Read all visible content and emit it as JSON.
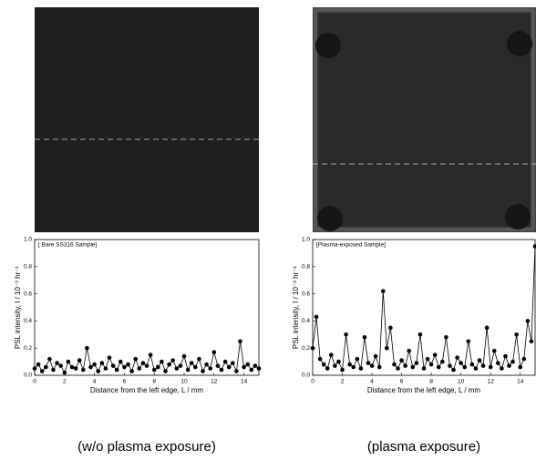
{
  "chart_data": [
    {
      "type": "line",
      "annotation": "[ Bare SS316 Sample]",
      "xlabel": "Distance from the left edge, L / mm",
      "ylabel": "PSL intensity, I / 10⁻³ hr⁻¹",
      "caption": "(w/o plasma exposure)",
      "color": "#000000",
      "xlim": [
        0,
        15
      ],
      "xticks": [
        0,
        2,
        4,
        6,
        8,
        10,
        12,
        14
      ],
      "ylim": [
        0,
        1
      ],
      "yticks": [
        {
          "value": 0,
          "label": "0.0"
        },
        {
          "value": 0.2,
          "label": "0.2"
        },
        {
          "value": 0.4,
          "label": "0.4"
        },
        {
          "value": 0.6,
          "label": "0.6"
        },
        {
          "value": 0.8,
          "label": "0.8"
        },
        {
          "value": 1,
          "label": "1.0"
        }
      ],
      "x": [
        0,
        0.25,
        0.5,
        0.75,
        1,
        1.25,
        1.5,
        1.75,
        2,
        2.25,
        2.5,
        2.75,
        3,
        3.25,
        3.5,
        3.75,
        4,
        4.25,
        4.5,
        4.75,
        5,
        5.25,
        5.5,
        5.75,
        6,
        6.25,
        6.5,
        6.75,
        7,
        7.25,
        7.5,
        7.75,
        8,
        8.25,
        8.5,
        8.75,
        9,
        9.25,
        9.5,
        9.75,
        10,
        10.25,
        10.5,
        10.75,
        11,
        11.25,
        11.5,
        11.75,
        12,
        12.25,
        12.5,
        12.75,
        13,
        13.25,
        13.5,
        13.75,
        14,
        14.25,
        14.5,
        14.75,
        15
      ],
      "values": [
        0.05,
        0.08,
        0.03,
        0.06,
        0.12,
        0.04,
        0.09,
        0.07,
        0.02,
        0.1,
        0.06,
        0.05,
        0.11,
        0.04,
        0.2,
        0.06,
        0.08,
        0.03,
        0.09,
        0.05,
        0.13,
        0.07,
        0.04,
        0.1,
        0.06,
        0.08,
        0.03,
        0.12,
        0.05,
        0.09,
        0.07,
        0.15,
        0.04,
        0.06,
        0.1,
        0.03,
        0.08,
        0.11,
        0.05,
        0.07,
        0.14,
        0.04,
        0.09,
        0.06,
        0.12,
        0.03,
        0.08,
        0.05,
        0.17,
        0.07,
        0.04,
        0.1,
        0.06,
        0.09,
        0.03,
        0.25,
        0.06,
        0.08,
        0.04,
        0.07,
        0.05
      ]
    },
    {
      "type": "line",
      "annotation": "[Plasma-exposed Sample]",
      "xlabel": "Distance from the left edge, L / mm",
      "ylabel": "PSL intensity, I / 10⁻³ hr⁻¹",
      "caption": "(plasma exposure)",
      "color": "#000000",
      "xlim": [
        0,
        15
      ],
      "xticks": [
        0,
        2,
        4,
        6,
        8,
        10,
        12,
        14
      ],
      "ylim": [
        0,
        1
      ],
      "yticks": [
        {
          "value": 0,
          "label": "0.0"
        },
        {
          "value": 0.2,
          "label": "0.2"
        },
        {
          "value": 0.4,
          "label": "0.4"
        },
        {
          "value": 0.6,
          "label": "0.6"
        },
        {
          "value": 0.8,
          "label": "0.8"
        },
        {
          "value": 1,
          "label": "1.0"
        }
      ],
      "x": [
        0,
        0.25,
        0.5,
        0.75,
        1,
        1.25,
        1.5,
        1.75,
        2,
        2.25,
        2.5,
        2.75,
        3,
        3.25,
        3.5,
        3.75,
        4,
        4.25,
        4.5,
        4.75,
        5,
        5.25,
        5.5,
        5.75,
        6,
        6.25,
        6.5,
        6.75,
        7,
        7.25,
        7.5,
        7.75,
        8,
        8.25,
        8.5,
        8.75,
        9,
        9.25,
        9.5,
        9.75,
        10,
        10.25,
        10.5,
        10.75,
        11,
        11.25,
        11.5,
        11.75,
        12,
        12.25,
        12.5,
        12.75,
        13,
        13.25,
        13.5,
        13.75,
        14,
        14.25,
        14.5,
        14.75,
        15
      ],
      "values": [
        0.2,
        0.43,
        0.12,
        0.08,
        0.05,
        0.15,
        0.07,
        0.1,
        0.04,
        0.3,
        0.08,
        0.06,
        0.12,
        0.05,
        0.28,
        0.09,
        0.07,
        0.14,
        0.06,
        0.62,
        0.2,
        0.35,
        0.08,
        0.05,
        0.11,
        0.07,
        0.18,
        0.06,
        0.09,
        0.3,
        0.05,
        0.12,
        0.08,
        0.15,
        0.06,
        0.1,
        0.28,
        0.07,
        0.04,
        0.13,
        0.09,
        0.06,
        0.25,
        0.08,
        0.05,
        0.11,
        0.07,
        0.35,
        0.06,
        0.18,
        0.09,
        0.05,
        0.14,
        0.07,
        0.1,
        0.3,
        0.06,
        0.12,
        0.4,
        0.25,
        0.95
      ]
    }
  ]
}
